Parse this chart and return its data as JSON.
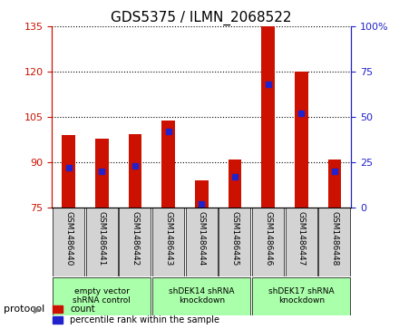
{
  "title": "GDS5375 / ILMN_2068522",
  "samples": [
    "GSM1486440",
    "GSM1486441",
    "GSM1486442",
    "GSM1486443",
    "GSM1486444",
    "GSM1486445",
    "GSM1486446",
    "GSM1486447",
    "GSM1486448"
  ],
  "count_values": [
    99,
    98,
    99.5,
    104,
    84,
    91,
    135,
    120,
    91
  ],
  "percentile_values": [
    22,
    20,
    23,
    42,
    2,
    17,
    68,
    52,
    20
  ],
  "ylim_left": [
    75,
    135
  ],
  "ylim_right": [
    0,
    100
  ],
  "yticks_left": [
    75,
    90,
    105,
    120,
    135
  ],
  "yticks_right": [
    0,
    25,
    50,
    75,
    100
  ],
  "bar_color": "#cc1100",
  "dot_color": "#2222cc",
  "groups": [
    {
      "label": "empty vector\nshRNA control",
      "start": 0,
      "end": 3,
      "color": "#aaffaa"
    },
    {
      "label": "shDEK14 shRNA\nknockdown",
      "start": 3,
      "end": 6,
      "color": "#aaffaa"
    },
    {
      "label": "shDEK17 shRNA\nknockdown",
      "start": 6,
      "end": 9,
      "color": "#aaffaa"
    }
  ],
  "legend_count_label": "count",
  "legend_pct_label": "percentile rank within the sample",
  "protocol_label": "protocol",
  "background_color": "#ffffff",
  "plot_bg_color": "#ffffff",
  "bar_width": 0.4,
  "tick_label_area_color": "#d3d3d3"
}
